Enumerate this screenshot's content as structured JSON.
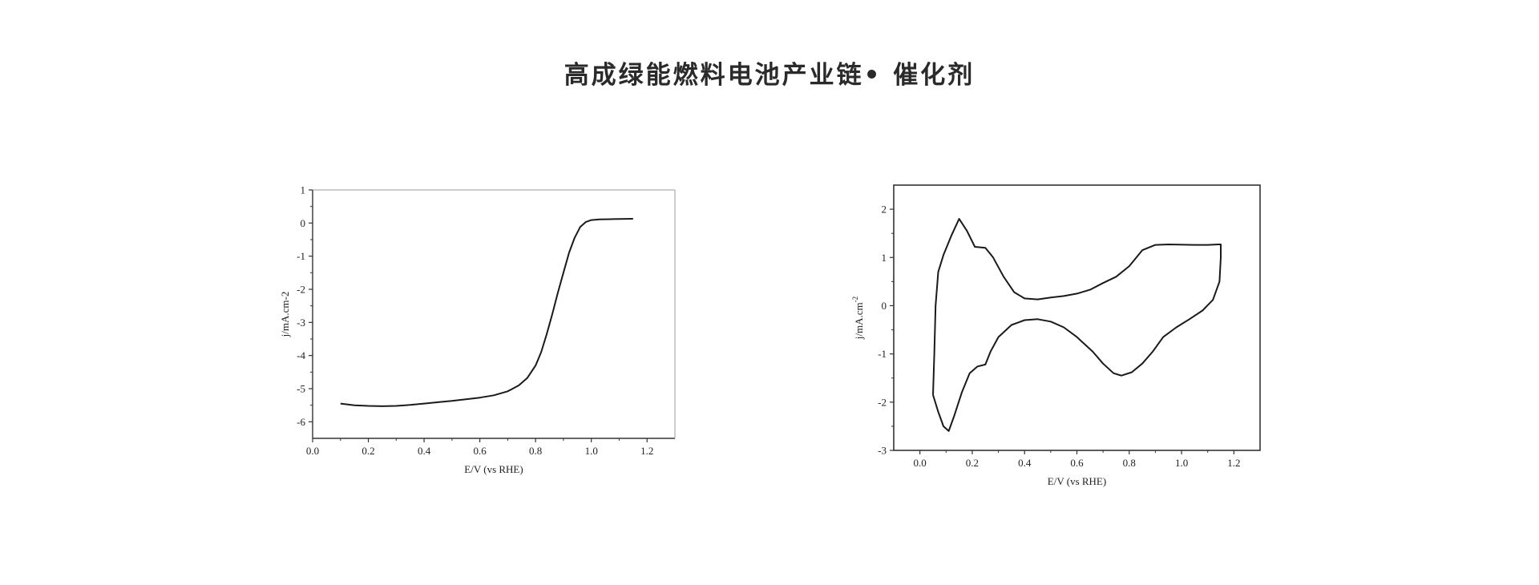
{
  "page": {
    "title": "高成绿能燃料电池产业链• 催化剂"
  },
  "chart_data": [
    {
      "type": "line",
      "xlabel": "E/V (vs RHE)",
      "ylabel": "j/mA.cm-2",
      "xlim": [
        0.0,
        1.3
      ],
      "ylim": [
        -6.5,
        1.0
      ],
      "xticks": [
        0.0,
        0.2,
        0.4,
        0.6,
        0.8,
        1.0,
        1.2
      ],
      "xtick_labels": [
        "0.0",
        "0.2",
        "0.4",
        "0.6",
        "0.8",
        "1.0",
        "1.2"
      ],
      "yticks": [
        1,
        0,
        -1,
        -2,
        -3,
        -4,
        -5,
        -6
      ],
      "ytick_labels": [
        "1",
        "0",
        "-1",
        "-2",
        "-3",
        "-4",
        "-5",
        "-6"
      ],
      "grid": false,
      "series": [
        {
          "color": "#1a1a1a",
          "points": [
            [
              0.1,
              -5.45
            ],
            [
              0.15,
              -5.5
            ],
            [
              0.2,
              -5.52
            ],
            [
              0.25,
              -5.53
            ],
            [
              0.3,
              -5.52
            ],
            [
              0.35,
              -5.49
            ],
            [
              0.4,
              -5.45
            ],
            [
              0.45,
              -5.41
            ],
            [
              0.5,
              -5.37
            ],
            [
              0.55,
              -5.32
            ],
            [
              0.6,
              -5.27
            ],
            [
              0.65,
              -5.2
            ],
            [
              0.7,
              -5.08
            ],
            [
              0.74,
              -4.9
            ],
            [
              0.77,
              -4.68
            ],
            [
              0.8,
              -4.3
            ],
            [
              0.82,
              -3.9
            ],
            [
              0.84,
              -3.35
            ],
            [
              0.86,
              -2.75
            ],
            [
              0.88,
              -2.1
            ],
            [
              0.9,
              -1.5
            ],
            [
              0.92,
              -0.9
            ],
            [
              0.94,
              -0.45
            ],
            [
              0.96,
              -0.12
            ],
            [
              0.98,
              0.03
            ],
            [
              1.0,
              0.09
            ],
            [
              1.03,
              0.11
            ],
            [
              1.08,
              0.12
            ],
            [
              1.15,
              0.13
            ]
          ]
        }
      ]
    },
    {
      "type": "line",
      "xlabel": "E/V (vs RHE)",
      "ylabel": "j/mA.cm",
      "ylabel_superscript": "-2",
      "xlim": [
        -0.1,
        1.3
      ],
      "ylim": [
        -3,
        2.5
      ],
      "xticks": [
        0.0,
        0.2,
        0.4,
        0.6,
        0.8,
        1.0,
        1.2
      ],
      "xtick_labels": [
        "0.0",
        "0.2",
        "0.4",
        "0.6",
        "0.8",
        "1.0",
        "1.2"
      ],
      "yticks": [
        2,
        1,
        0,
        -1,
        -2,
        -3
      ],
      "ytick_labels": [
        "2",
        "1",
        "0",
        "-1",
        "-2",
        "-3"
      ],
      "grid": false,
      "series": [
        {
          "color": "#1a1a1a",
          "points": [
            [
              0.05,
              -1.85
            ],
            [
              0.055,
              -1.0
            ],
            [
              0.06,
              0.0
            ],
            [
              0.07,
              0.7
            ],
            [
              0.09,
              1.05
            ],
            [
              0.12,
              1.45
            ],
            [
              0.15,
              1.8
            ],
            [
              0.18,
              1.55
            ],
            [
              0.21,
              1.22
            ],
            [
              0.25,
              1.2
            ],
            [
              0.28,
              1.0
            ],
            [
              0.32,
              0.6
            ],
            [
              0.36,
              0.28
            ],
            [
              0.4,
              0.15
            ],
            [
              0.45,
              0.13
            ],
            [
              0.5,
              0.17
            ],
            [
              0.55,
              0.2
            ],
            [
              0.6,
              0.25
            ],
            [
              0.65,
              0.33
            ],
            [
              0.7,
              0.47
            ],
            [
              0.75,
              0.6
            ],
            [
              0.8,
              0.82
            ],
            [
              0.85,
              1.15
            ],
            [
              0.9,
              1.26
            ],
            [
              0.95,
              1.27
            ],
            [
              1.05,
              1.26
            ],
            [
              1.1,
              1.26
            ],
            [
              1.14,
              1.27
            ],
            [
              1.15,
              1.27
            ],
            [
              1.15,
              1.0
            ],
            [
              1.145,
              0.5
            ],
            [
              1.12,
              0.12
            ],
            [
              1.08,
              -0.1
            ],
            [
              1.03,
              -0.28
            ],
            [
              0.98,
              -0.45
            ],
            [
              0.93,
              -0.65
            ],
            [
              0.89,
              -0.95
            ],
            [
              0.85,
              -1.2
            ],
            [
              0.81,
              -1.38
            ],
            [
              0.77,
              -1.45
            ],
            [
              0.74,
              -1.4
            ],
            [
              0.7,
              -1.2
            ],
            [
              0.66,
              -0.95
            ],
            [
              0.6,
              -0.65
            ],
            [
              0.55,
              -0.45
            ],
            [
              0.5,
              -0.33
            ],
            [
              0.45,
              -0.28
            ],
            [
              0.4,
              -0.3
            ],
            [
              0.35,
              -0.4
            ],
            [
              0.3,
              -0.65
            ],
            [
              0.27,
              -0.95
            ],
            [
              0.25,
              -1.22
            ],
            [
              0.22,
              -1.26
            ],
            [
              0.19,
              -1.4
            ],
            [
              0.16,
              -1.8
            ],
            [
              0.13,
              -2.3
            ],
            [
              0.11,
              -2.6
            ],
            [
              0.09,
              -2.5
            ],
            [
              0.07,
              -2.2
            ],
            [
              0.05,
              -1.85
            ]
          ]
        }
      ]
    }
  ]
}
